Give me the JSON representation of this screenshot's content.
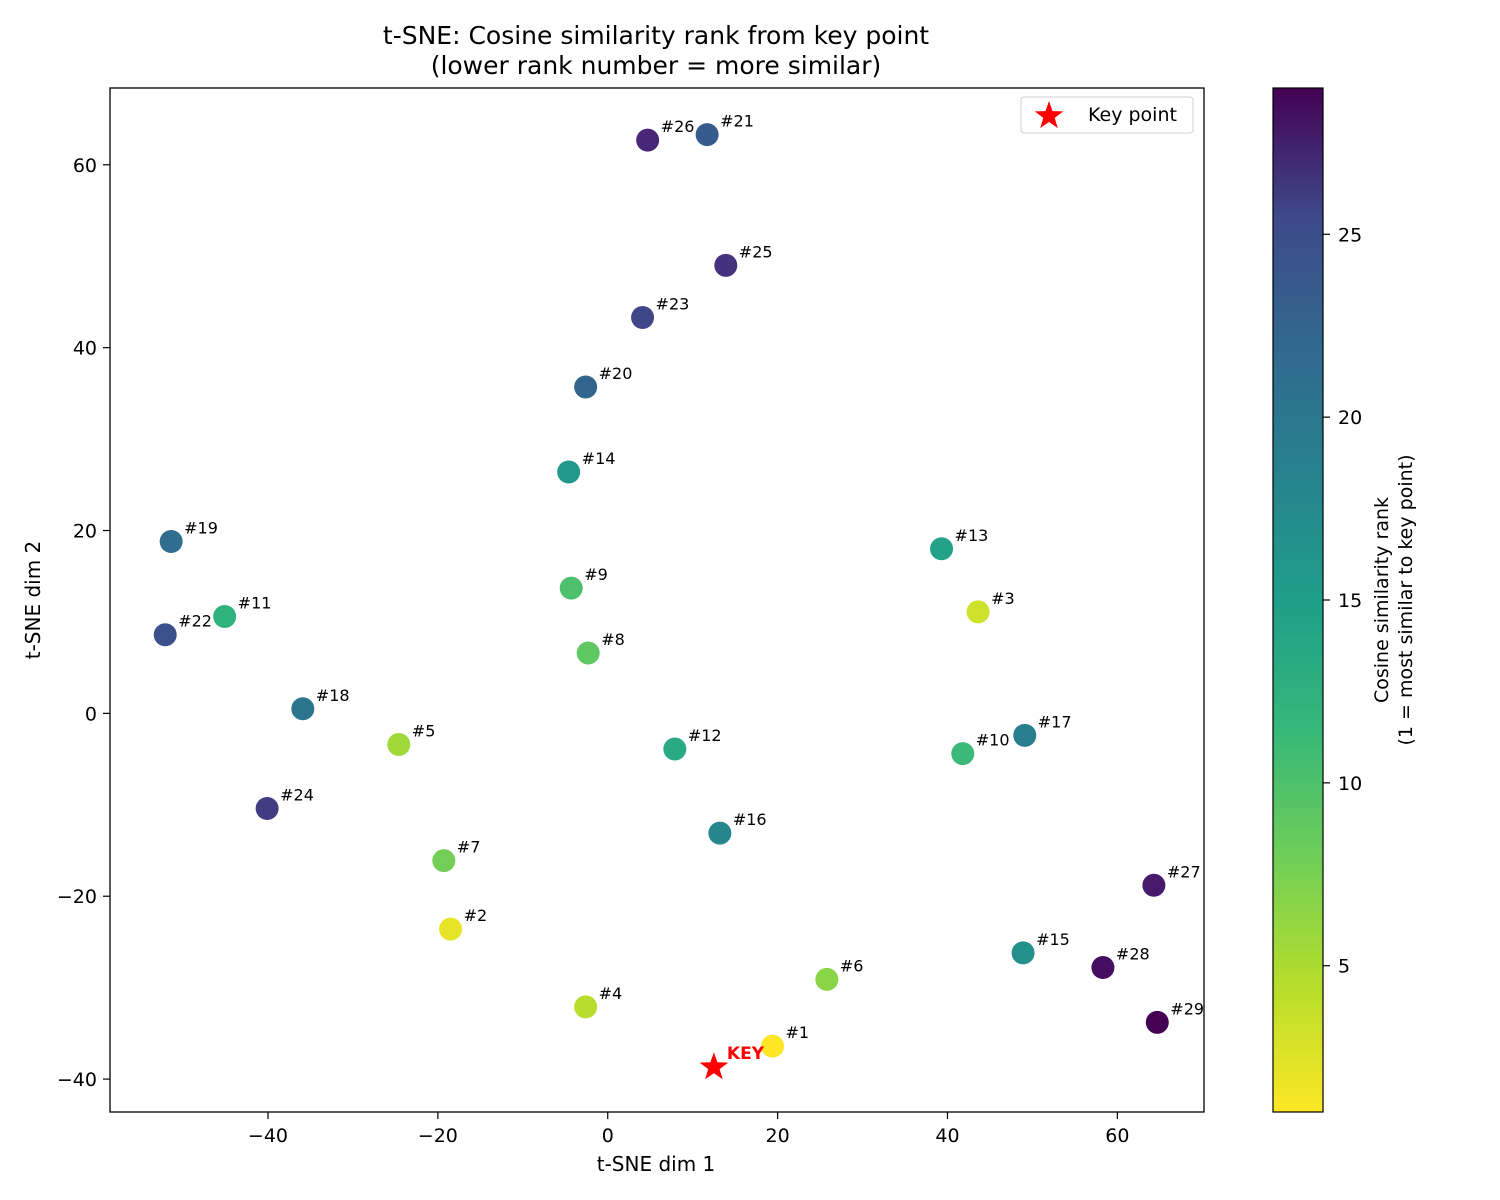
{
  "chart_data": {
    "type": "scatter",
    "title": "t-SNE: Cosine similarity rank from key point",
    "subtitle": "(lower rank number = more similar)",
    "xlabel": "t-SNE dim 1",
    "ylabel": "t-SNE dim 2",
    "xlim": [
      -58.6,
      70.2
    ],
    "ylim": [
      -43.6,
      68.4
    ],
    "x_ticks": [
      -40,
      -20,
      0,
      20,
      40,
      60
    ],
    "x_tick_labels": [
      "−40",
      "−20",
      "0",
      "20",
      "40",
      "60"
    ],
    "y_ticks": [
      -40,
      -20,
      0,
      20,
      40,
      60
    ],
    "y_tick_labels": [
      "−40",
      "−20",
      "0",
      "20",
      "40",
      "60"
    ],
    "grid": false,
    "legend": {
      "placement": "top-right",
      "entries": [
        "Key point"
      ]
    },
    "key_point": {
      "x": 12.5,
      "y": -38.7,
      "label": "KEY",
      "color": "#ff0000"
    },
    "colorbar": {
      "label_line1": "Cosine similarity rank",
      "label_line2": "(1 = most similar to key point)",
      "colormap": "viridis_r",
      "range": [
        1,
        29
      ],
      "ticks": [
        5,
        10,
        15,
        20,
        25
      ],
      "tick_labels": [
        "5",
        "10",
        "15",
        "20",
        "25"
      ]
    },
    "points": [
      {
        "rank": 1,
        "label": "#1",
        "x": 19.4,
        "y": -36.4
      },
      {
        "rank": 2,
        "label": "#2",
        "x": -18.5,
        "y": -23.6
      },
      {
        "rank": 3,
        "label": "#3",
        "x": 43.6,
        "y": 11.1
      },
      {
        "rank": 4,
        "label": "#4",
        "x": -2.6,
        "y": -32.1
      },
      {
        "rank": 5,
        "label": "#5",
        "x": -24.6,
        "y": -3.4
      },
      {
        "rank": 6,
        "label": "#6",
        "x": 25.8,
        "y": -29.1
      },
      {
        "rank": 7,
        "label": "#7",
        "x": -19.3,
        "y": -16.1
      },
      {
        "rank": 8,
        "label": "#8",
        "x": -2.3,
        "y": 6.6
      },
      {
        "rank": 9,
        "label": "#9",
        "x": -4.3,
        "y": 13.7
      },
      {
        "rank": 10,
        "label": "#10",
        "x": 41.8,
        "y": -4.4
      },
      {
        "rank": 11,
        "label": "#11",
        "x": -45.1,
        "y": 10.6
      },
      {
        "rank": 12,
        "label": "#12",
        "x": 7.9,
        "y": -3.9
      },
      {
        "rank": 13,
        "label": "#13",
        "x": 39.3,
        "y": 18.0
      },
      {
        "rank": 14,
        "label": "#14",
        "x": -4.6,
        "y": 26.4
      },
      {
        "rank": 15,
        "label": "#15",
        "x": 48.9,
        "y": -26.2
      },
      {
        "rank": 16,
        "label": "#16",
        "x": 13.2,
        "y": -13.1
      },
      {
        "rank": 17,
        "label": "#17",
        "x": 49.1,
        "y": -2.4
      },
      {
        "rank": 18,
        "label": "#18",
        "x": -35.9,
        "y": 0.5
      },
      {
        "rank": 19,
        "label": "#19",
        "x": -51.4,
        "y": 18.8
      },
      {
        "rank": 20,
        "label": "#20",
        "x": -2.6,
        "y": 35.7
      },
      {
        "rank": 21,
        "label": "#21",
        "x": 11.7,
        "y": 63.3
      },
      {
        "rank": 22,
        "label": "#22",
        "x": -52.1,
        "y": 8.6
      },
      {
        "rank": 23,
        "label": "#23",
        "x": 4.1,
        "y": 43.3
      },
      {
        "rank": 24,
        "label": "#24",
        "x": -40.1,
        "y": -10.4
      },
      {
        "rank": 25,
        "label": "#25",
        "x": 13.9,
        "y": 49.0
      },
      {
        "rank": 26,
        "label": "#26",
        "x": 4.7,
        "y": 62.7
      },
      {
        "rank": 27,
        "label": "#27",
        "x": 64.3,
        "y": -18.8
      },
      {
        "rank": 28,
        "label": "#28",
        "x": 58.3,
        "y": -27.8
      },
      {
        "rank": 29,
        "label": "#29",
        "x": 64.7,
        "y": -33.8
      }
    ]
  }
}
